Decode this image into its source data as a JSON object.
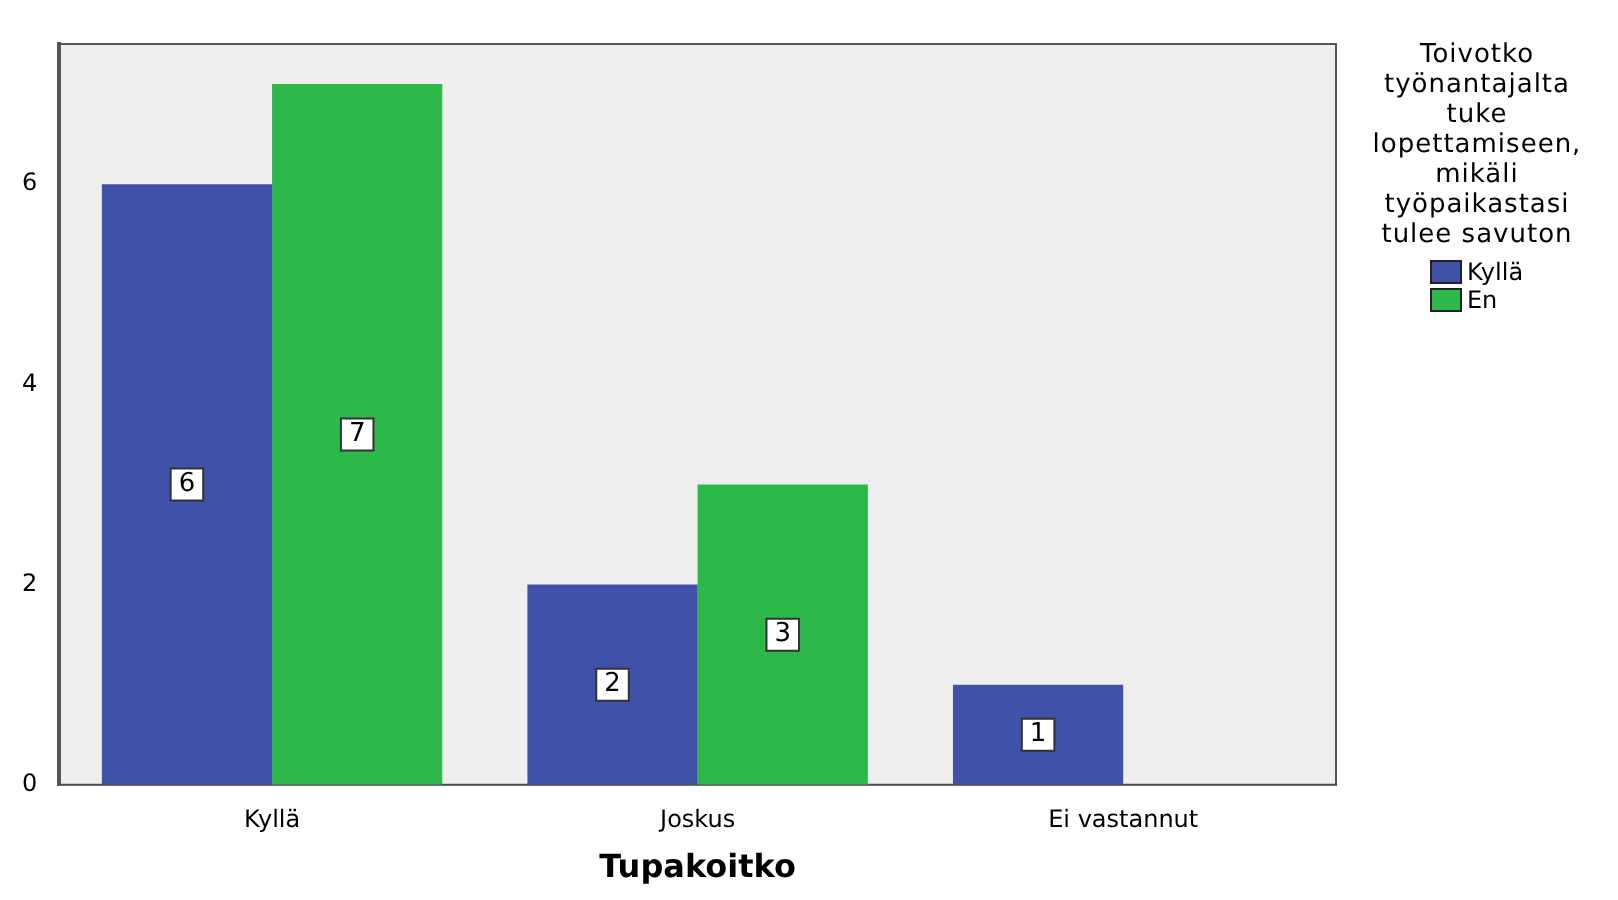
{
  "chart_data": {
    "type": "bar",
    "xlabel": "Tupakoitko",
    "legend_title": "Toivotko työnantajalta tuke lopettamiseen, mikäli työpaikastasi tulee savuton",
    "categories": [
      "Kyllä",
      "Joskus",
      "Ei vastannut"
    ],
    "series": [
      {
        "name": "Kyllä",
        "color": "#3f51a8",
        "values": [
          6,
          2,
          1
        ]
      },
      {
        "name": "En",
        "color": "#2db84a",
        "values": [
          7,
          3,
          null
        ]
      }
    ],
    "ylim": [
      0,
      7.4
    ],
    "yticks": [
      0,
      2,
      4,
      6
    ],
    "grid": false,
    "legend": "right",
    "data_labels": true
  }
}
